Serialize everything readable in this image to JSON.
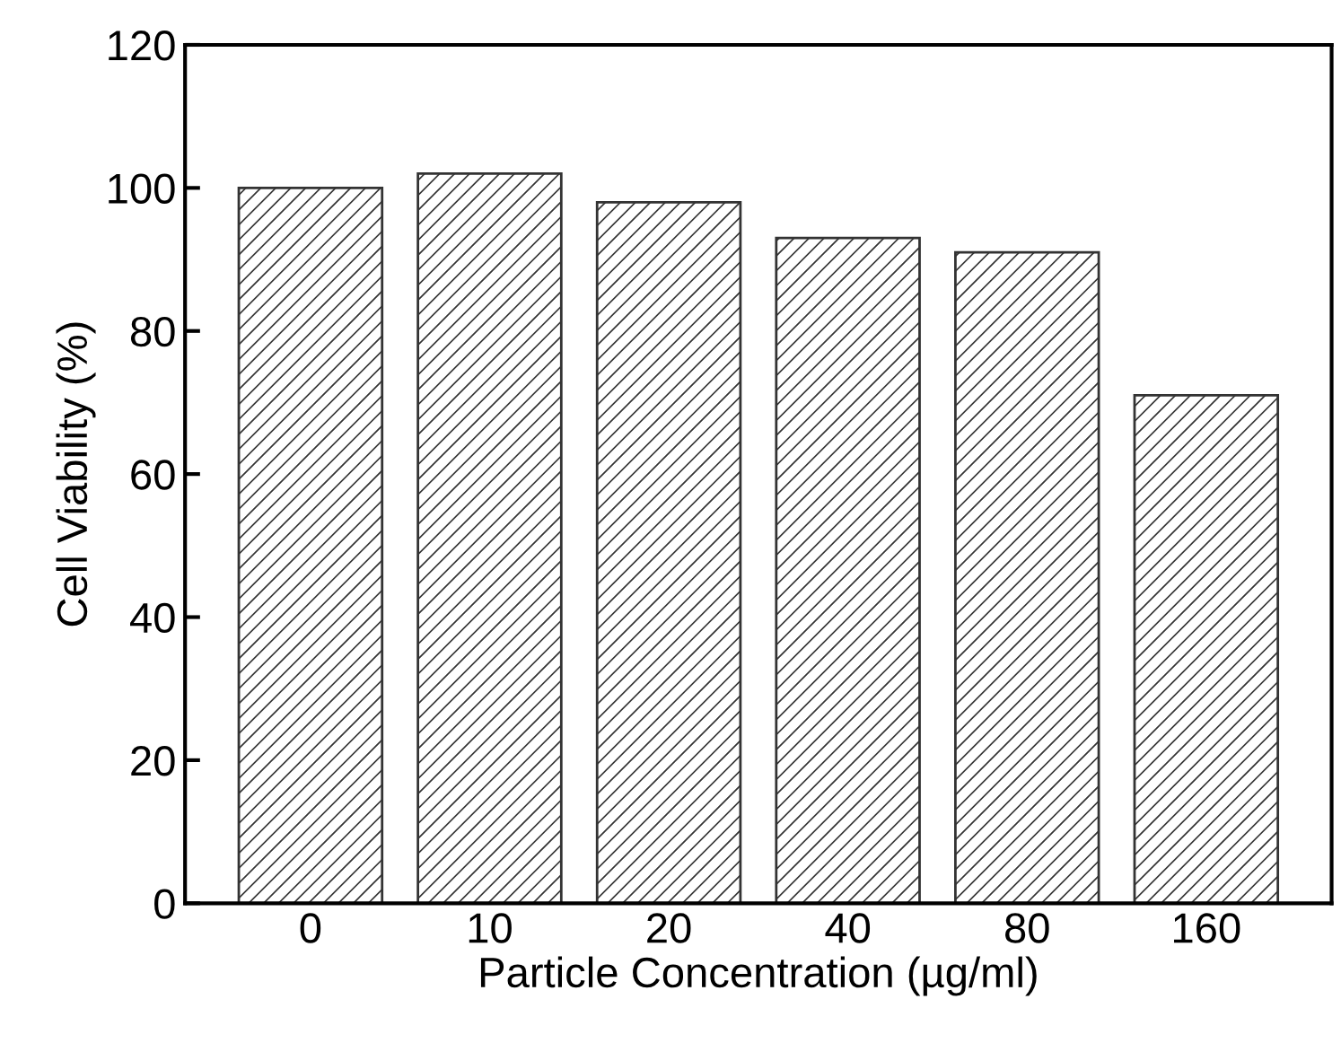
{
  "chart_data": {
    "type": "bar",
    "xlabel": "Particle Concentration (µg/ml)",
    "ylabel": "Cell Viability (%)",
    "categories": [
      "0",
      "10",
      "20",
      "40",
      "80",
      "160"
    ],
    "values": [
      100,
      102,
      98,
      93,
      91,
      71
    ],
    "color": "#333333",
    "ylim": [
      0,
      120
    ],
    "yticks": [
      0,
      20,
      40,
      60,
      80,
      100,
      120
    ],
    "grid": false,
    "legend": false
  }
}
